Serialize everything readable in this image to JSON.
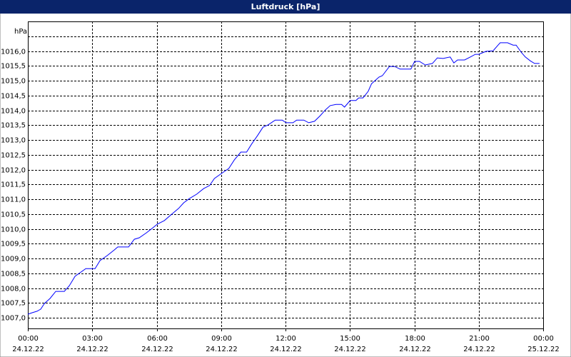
{
  "chart_data": {
    "type": "line",
    "title": "Luftdruck [hPa]",
    "y_label": "hPa",
    "xlim": [
      0,
      24
    ],
    "ylim": [
      1006.64,
      1017.0
    ],
    "xticks": [
      {
        "value": 0,
        "label": "00:00"
      },
      {
        "value": 3,
        "label": "03:00"
      },
      {
        "value": 6,
        "label": "06:00"
      },
      {
        "value": 9,
        "label": "09:00"
      },
      {
        "value": 12,
        "label": "12:00"
      },
      {
        "value": 15,
        "label": "15:00"
      },
      {
        "value": 18,
        "label": "18:00"
      },
      {
        "value": 21,
        "label": "21:00"
      },
      {
        "value": 24,
        "label": "00:00"
      }
    ],
    "xtick_dates": [
      "24.12.22",
      "24.12.22",
      "24.12.22",
      "24.12.22",
      "24.12.22",
      "24.12.22",
      "24.12.22",
      "24.12.22",
      "25.12.22"
    ],
    "yticks": [
      {
        "value": 1007,
        "label": "1007,0"
      },
      {
        "value": 1007.5,
        "label": "1007,5"
      },
      {
        "value": 1008,
        "label": "1008,0"
      },
      {
        "value": 1008.5,
        "label": "1008,5"
      },
      {
        "value": 1009,
        "label": "1009,0"
      },
      {
        "value": 1009.5,
        "label": "1009,5"
      },
      {
        "value": 1010,
        "label": "1010,0"
      },
      {
        "value": 1010.5,
        "label": "1010,5"
      },
      {
        "value": 1011,
        "label": "1011,0"
      },
      {
        "value": 1011.5,
        "label": "1011,5"
      },
      {
        "value": 1012,
        "label": "1012,0"
      },
      {
        "value": 1012.5,
        "label": "1012,5"
      },
      {
        "value": 1013,
        "label": "1013,0"
      },
      {
        "value": 1013.5,
        "label": "1013,5"
      },
      {
        "value": 1014,
        "label": "1014,0"
      },
      {
        "value": 1014.5,
        "label": "1014,5"
      },
      {
        "value": 1015,
        "label": "1015,0"
      },
      {
        "value": 1015.5,
        "label": "1015,5"
      },
      {
        "value": 1016,
        "label": "1016,0"
      }
    ],
    "ygrid_extra": [
      1016.5
    ],
    "grid": true,
    "x": [
      0,
      0.2,
      0.43,
      0.6,
      0.77,
      1.03,
      1.3,
      1.7,
      1.93,
      2.2,
      2.43,
      2.7,
      3.13,
      3.36,
      3.7,
      4.03,
      4.19,
      4.69,
      4.96,
      5.19,
      5.53,
      5.86,
      6.03,
      6.36,
      6.69,
      7.02,
      7.26,
      7.52,
      7.86,
      8.19,
      8.46,
      8.69,
      9.02,
      9.36,
      9.62,
      9.92,
      10.19,
      10.42,
      10.69,
      10.95,
      11.19,
      11.52,
      11.85,
      12.02,
      12.35,
      12.52,
      12.85,
      13.08,
      13.35,
      13.62,
      13.85,
      14.08,
      14.35,
      14.61,
      14.75,
      15.01,
      15.28,
      15.41,
      15.61,
      15.85,
      16.01,
      16.35,
      16.51,
      16.84,
      17.08,
      17.34,
      17.84,
      18.01,
      18.24,
      18.51,
      18.84,
      19.07,
      19.34,
      19.67,
      19.84,
      20.01,
      20.34,
      20.61,
      20.84,
      21.0,
      21.34,
      21.67,
      21.9,
      22.0,
      22.34,
      22.6,
      22.74,
      23.0,
      23.17,
      23.4,
      23.6,
      23.83
    ],
    "series": [
      {
        "color": "#0000ff",
        "values": [
          1007.12,
          1007.17,
          1007.22,
          1007.29,
          1007.48,
          1007.65,
          1007.89,
          1007.89,
          1008.08,
          1008.4,
          1008.52,
          1008.66,
          1008.66,
          1008.93,
          1009.1,
          1009.29,
          1009.39,
          1009.39,
          1009.65,
          1009.7,
          1009.87,
          1010.06,
          1010.16,
          1010.28,
          1010.49,
          1010.69,
          1010.88,
          1011.02,
          1011.17,
          1011.36,
          1011.46,
          1011.7,
          1011.87,
          1012.04,
          1012.33,
          1012.59,
          1012.59,
          1012.86,
          1013.14,
          1013.43,
          1013.51,
          1013.67,
          1013.67,
          1013.58,
          1013.58,
          1013.67,
          1013.67,
          1013.58,
          1013.63,
          1013.82,
          1014.01,
          1014.16,
          1014.2,
          1014.2,
          1014.11,
          1014.33,
          1014.33,
          1014.42,
          1014.42,
          1014.64,
          1014.9,
          1015.12,
          1015.17,
          1015.48,
          1015.48,
          1015.39,
          1015.39,
          1015.65,
          1015.65,
          1015.53,
          1015.58,
          1015.77,
          1015.75,
          1015.8,
          1015.6,
          1015.7,
          1015.7,
          1015.8,
          1015.89,
          1015.89,
          1015.99,
          1016.01,
          1016.2,
          1016.28,
          1016.28,
          1016.2,
          1016.2,
          1015.94,
          1015.8,
          1015.67,
          1015.58,
          1015.58
        ]
      }
    ]
  }
}
